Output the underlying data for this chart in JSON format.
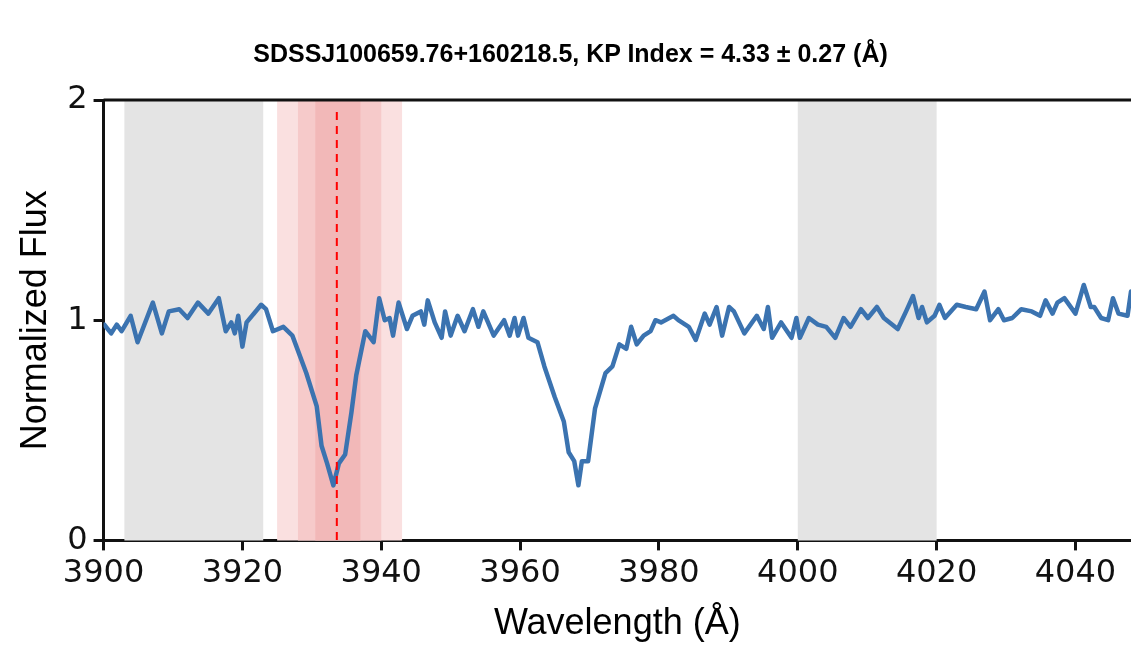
{
  "chart_data": {
    "type": "line",
    "title": "SDSSJ100659.76+160218.5, KP Index = 4.33 ± 0.27 (Å)",
    "xlabel": "Wavelength (Å)",
    "ylabel": "Normalized Flux",
    "xlim": [
      3900,
      4048
    ],
    "xticks": [
      3900,
      3920,
      3940,
      3960,
      3980,
      4000,
      4020,
      4040
    ],
    "ylim": [
      0,
      2
    ],
    "yticks": [
      0,
      1,
      2
    ],
    "grid": false,
    "legend": false,
    "marker": "none",
    "line_style": "solid",
    "bands": [
      {
        "axis": "x",
        "from": 3903,
        "to": 3923,
        "color": "#e4e4e4"
      },
      {
        "axis": "x",
        "from": 4000,
        "to": 4020,
        "color": "#e4e4e4"
      },
      {
        "axis": "x",
        "from": 3925,
        "to": 3943,
        "color": "#fae0e0"
      },
      {
        "axis": "x",
        "from": 3928,
        "to": 3940,
        "color": "#f6caca"
      },
      {
        "axis": "x",
        "from": 3930.5,
        "to": 3937,
        "color": "#f2b8b8"
      }
    ],
    "ref_lines": [
      {
        "axis": "x",
        "value": 3933.6,
        "color": "#ff0000",
        "line_style": "dashed"
      }
    ],
    "series": [
      {
        "color": "#3b73b0",
        "x": [
          3900.1,
          3901.1,
          3901.9,
          3902.6,
          3903.9,
          3904.9,
          3907.1,
          3908.4,
          3909.4,
          3910.9,
          3912.1,
          3913.6,
          3915.1,
          3916.6,
          3917.6,
          3918.4,
          3918.9,
          3919.4,
          3920.0,
          3920.6,
          3922.7,
          3923.4,
          3924.4,
          3925.9,
          3927.2,
          3929.2,
          3930.7,
          3931.4,
          3932.2,
          3933.1,
          3933.9,
          3934.8,
          3935.7,
          3936.4,
          3937.7,
          3938.9,
          3939.7,
          3940.5,
          3941.2,
          3941.7,
          3942.5,
          3943.7,
          3944.5,
          3945.7,
          3946.2,
          3946.7,
          3947.7,
          3948.7,
          3949.2,
          3950.0,
          3951.0,
          3952.0,
          3953.2,
          3954.0,
          3954.7,
          3956.2,
          3957.7,
          3958.5,
          3959.2,
          3959.7,
          3960.5,
          3961.2,
          3962.5,
          3963.5,
          3965.0,
          3966.3,
          3967.0,
          3967.8,
          3968.4,
          3968.9,
          3969.8,
          3970.8,
          3972.3,
          3973.3,
          3974.3,
          3975.3,
          3976.0,
          3976.8,
          3977.8,
          3978.8,
          3979.5,
          3980.3,
          3982.1,
          3982.8,
          3984.3,
          3985.3,
          3986.6,
          3987.3,
          3988.3,
          3989.1,
          3990.1,
          3990.8,
          3992.3,
          3994.1,
          3995.1,
          3995.7,
          3996.3,
          3997.6,
          3999.1,
          3999.8,
          4000.3,
          4001.6,
          4002.9,
          4004.1,
          4005.4,
          4006.6,
          4007.6,
          4009.1,
          4010.1,
          4011.4,
          4012.4,
          4014.4,
          4015.6,
          4016.6,
          4017.4,
          4017.9,
          4018.6,
          4019.7,
          4020.4,
          4021.2,
          4022.9,
          4024.2,
          4025.7,
          4026.9,
          4027.7,
          4028.9,
          4029.7,
          4030.9,
          4032.2,
          4033.7,
          4034.9,
          4035.7,
          4036.7,
          4037.4,
          4038.4,
          4040.0,
          4041.2,
          4042.2,
          4042.7,
          4043.7,
          4044.7,
          4045.4,
          4046.2,
          4047.5,
          4048
        ],
        "values": [
          0.98,
          0.94,
          0.98,
          0.95,
          1.02,
          0.9,
          1.08,
          0.94,
          1.04,
          1.05,
          1.01,
          1.08,
          1.03,
          1.1,
          0.95,
          0.99,
          0.94,
          1.02,
          0.88,
          0.99,
          1.07,
          1.05,
          0.95,
          0.97,
          0.93,
          0.76,
          0.61,
          0.43,
          0.35,
          0.25,
          0.35,
          0.39,
          0.58,
          0.75,
          0.95,
          0.9,
          1.1,
          1.0,
          1.01,
          0.93,
          1.08,
          0.96,
          1.02,
          1.04,
          0.98,
          1.09,
          0.99,
          0.92,
          1.04,
          0.93,
          1.02,
          0.95,
          1.05,
          0.97,
          1.04,
          0.93,
          1.0,
          0.93,
          1.01,
          0.93,
          1.01,
          0.92,
          0.9,
          0.79,
          0.65,
          0.54,
          0.4,
          0.36,
          0.25,
          0.36,
          0.36,
          0.6,
          0.76,
          0.79,
          0.89,
          0.87,
          0.97,
          0.89,
          0.93,
          0.95,
          1.0,
          0.99,
          1.02,
          1.0,
          0.97,
          0.91,
          1.03,
          0.98,
          1.06,
          0.93,
          1.06,
          1.04,
          0.94,
          1.02,
          0.96,
          1.06,
          0.92,
          0.99,
          0.92,
          1.01,
          0.92,
          1.01,
          0.98,
          0.97,
          0.92,
          1.01,
          0.97,
          1.05,
          1.01,
          1.06,
          1.01,
          0.96,
          1.04,
          1.11,
          1.01,
          1.06,
          0.99,
          1.02,
          1.07,
          1.01,
          1.07,
          1.06,
          1.05,
          1.13,
          1.0,
          1.05,
          1.0,
          1.01,
          1.05,
          1.04,
          1.02,
          1.09,
          1.03,
          1.08,
          1.1,
          1.03,
          1.16,
          1.06,
          1.06,
          1.01,
          1.0,
          1.1,
          1.03,
          1.02,
          1.13
        ]
      }
    ]
  }
}
